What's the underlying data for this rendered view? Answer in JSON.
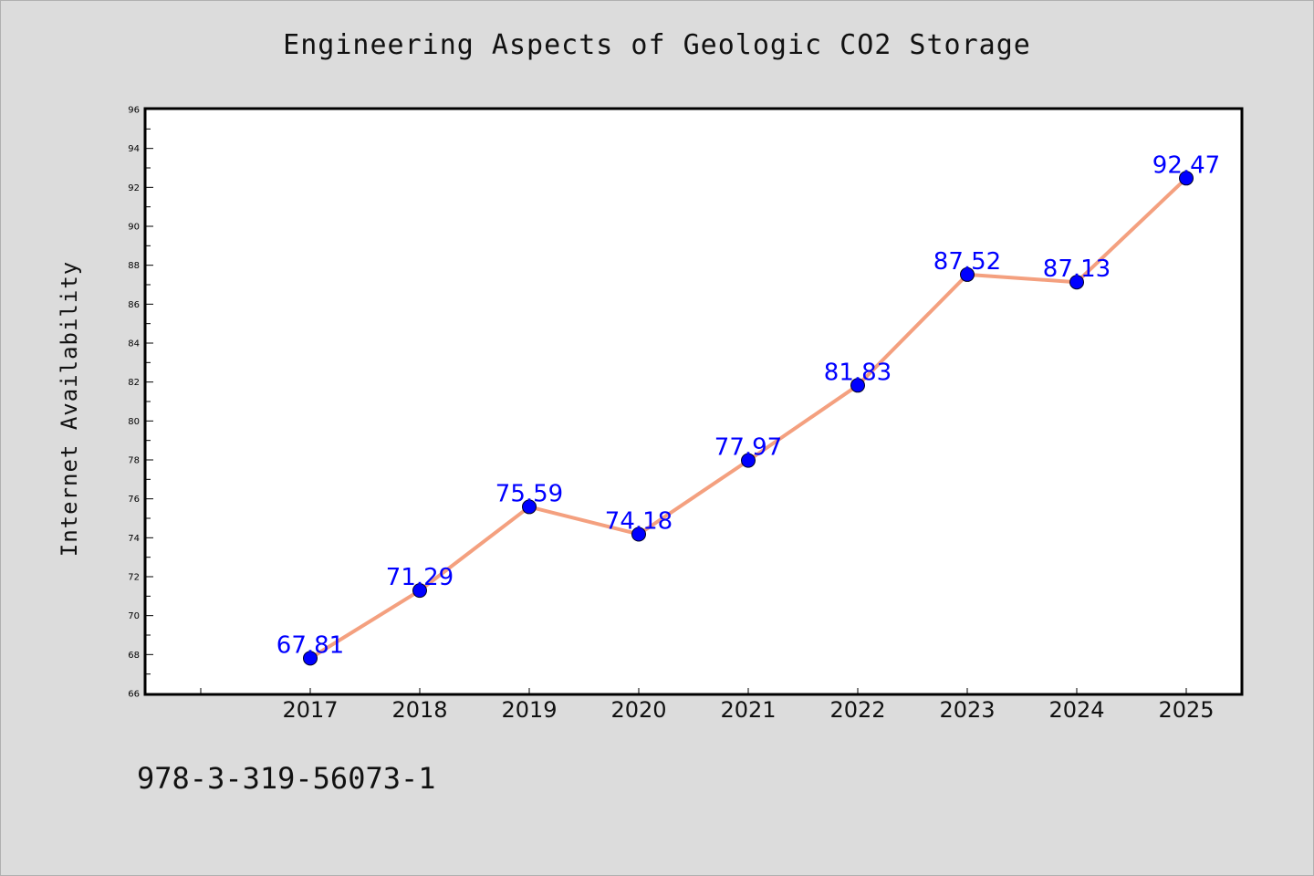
{
  "chart_data": {
    "type": "line",
    "title": "Engineering Aspects of Geologic CO2 Storage",
    "xlabel": "",
    "ylabel": "Internet Availability",
    "x": [
      "2017",
      "2018",
      "2019",
      "2020",
      "2021",
      "2022",
      "2023",
      "2024",
      "2025"
    ],
    "series": [
      {
        "values": [
          67.81,
          71.29,
          75.59,
          74.18,
          77.97,
          81.83,
          87.52,
          87.13,
          92.47
        ],
        "line_color": "#f4a07f",
        "marker_color": "#0000ff",
        "label_color": "#0000ff"
      }
    ],
    "ylim": [
      66,
      96
    ],
    "yticks": [
      66,
      68,
      70,
      72,
      74,
      76,
      78,
      80,
      82,
      84,
      86,
      88,
      90,
      92,
      94,
      96
    ],
    "grid": false,
    "data_labels": [
      "67.81",
      "71.29",
      "75.59",
      "74.18",
      "77.97",
      "81.83",
      "87.52",
      "87.13",
      "92.47"
    ]
  },
  "footnote": "978-3-319-56073-1",
  "colors": {
    "background": "#dcdcdc",
    "plot_background": "#ffffff",
    "axis": "#000000"
  }
}
